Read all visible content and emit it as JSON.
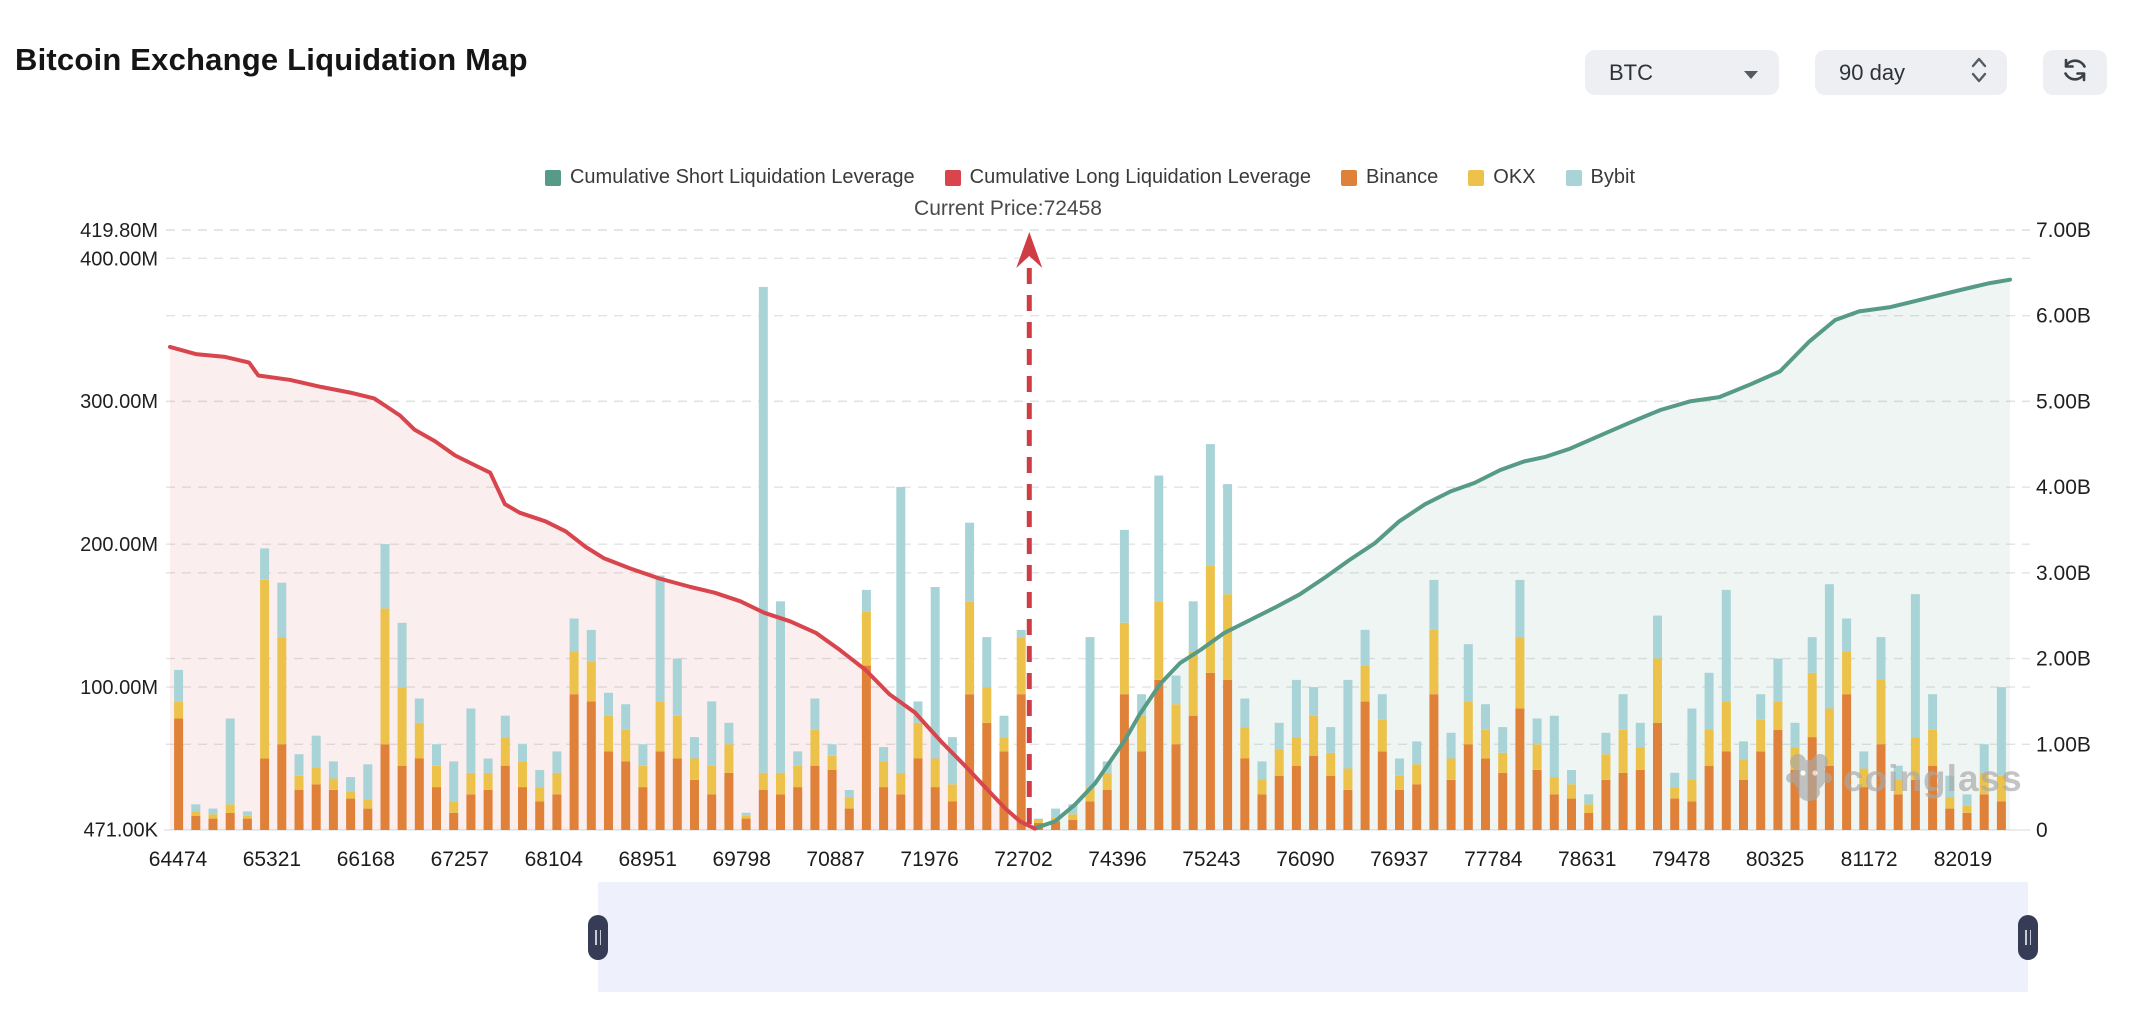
{
  "header": {
    "title": "Bitcoin Exchange Liquidation Map",
    "coin_select": {
      "value": "BTC"
    },
    "period_select": {
      "value": "90 day"
    }
  },
  "annotation": {
    "current_price_label": "Current Price:72458"
  },
  "watermark": {
    "text": "coinglass"
  },
  "chart_data": {
    "type": "composite",
    "title": "Bitcoin Exchange Liquidation Map",
    "grid": true,
    "legend_position": "top-center",
    "left_axis": {
      "min_label": "471.00K",
      "max": 419.8,
      "unit": "M",
      "ticks": [
        {
          "value": 419.8,
          "label": "419.80M",
          "grid": true
        },
        {
          "value": 400,
          "label": "400.00M",
          "grid": true
        },
        {
          "value": 300,
          "label": "300.00M",
          "grid": true
        },
        {
          "value": 200,
          "label": "200.00M",
          "grid": true
        },
        {
          "value": 100,
          "label": "100.00M",
          "grid": true
        },
        {
          "value": 0.471,
          "label": "471.00K",
          "grid": false
        }
      ]
    },
    "right_axis": {
      "max": 7,
      "unit": "B",
      "ticks": [
        {
          "value": 7,
          "label": "7.00B",
          "grid": true
        },
        {
          "value": 6,
          "label": "6.00B",
          "grid": true
        },
        {
          "value": 5,
          "label": "5.00B",
          "grid": true
        },
        {
          "value": 4,
          "label": "4.00B",
          "grid": true
        },
        {
          "value": 3,
          "label": "3.00B",
          "grid": true
        },
        {
          "value": 2,
          "label": "2.00B",
          "grid": true
        },
        {
          "value": 1,
          "label": "1.00B",
          "grid": true
        },
        {
          "value": 0,
          "label": "0",
          "grid": false
        }
      ]
    },
    "x_axis": {
      "labels": [
        "64474",
        "65321",
        "66168",
        "67257",
        "68104",
        "68951",
        "69798",
        "70887",
        "71976",
        "72702",
        "74396",
        "75243",
        "76090",
        "76937",
        "77784",
        "78631",
        "79478",
        "80325",
        "81172",
        "82019"
      ]
    },
    "current_price": {
      "value": 72458,
      "x_fraction": 0.467
    },
    "series": [
      {
        "name": "Cumulative Short Liquidation Leverage",
        "type": "line",
        "axis": "right",
        "color": "#569a87",
        "fill": "rgba(86,154,135,0.10)",
        "points": [
          [
            0.47,
            0.02
          ],
          [
            0.481,
            0.1
          ],
          [
            0.492,
            0.3
          ],
          [
            0.503,
            0.55
          ],
          [
            0.511,
            0.8
          ],
          [
            0.519,
            1.05
          ],
          [
            0.527,
            1.35
          ],
          [
            0.538,
            1.7
          ],
          [
            0.549,
            1.95
          ],
          [
            0.56,
            2.1
          ],
          [
            0.573,
            2.3
          ],
          [
            0.587,
            2.45
          ],
          [
            0.601,
            2.6
          ],
          [
            0.614,
            2.75
          ],
          [
            0.628,
            2.95
          ],
          [
            0.641,
            3.15
          ],
          [
            0.655,
            3.35
          ],
          [
            0.668,
            3.6
          ],
          [
            0.682,
            3.8
          ],
          [
            0.696,
            3.95
          ],
          [
            0.709,
            4.05
          ],
          [
            0.723,
            4.2
          ],
          [
            0.736,
            4.3
          ],
          [
            0.747,
            4.35
          ],
          [
            0.761,
            4.45
          ],
          [
            0.777,
            4.6
          ],
          [
            0.793,
            4.75
          ],
          [
            0.81,
            4.9
          ],
          [
            0.826,
            5.0
          ],
          [
            0.842,
            5.05
          ],
          [
            0.859,
            5.2
          ],
          [
            0.875,
            5.35
          ],
          [
            0.891,
            5.7
          ],
          [
            0.905,
            5.95
          ],
          [
            0.918,
            6.05
          ],
          [
            0.935,
            6.1
          ],
          [
            0.954,
            6.2
          ],
          [
            0.973,
            6.3
          ],
          [
            0.989,
            6.38
          ],
          [
            1.0,
            6.42
          ]
        ]
      },
      {
        "name": "Cumulative Long Liquidation Leverage",
        "type": "line",
        "axis": "left",
        "color": "#d8454d",
        "fill": "rgba(216,69,77,0.09)",
        "points": [
          [
            0.0,
            338
          ],
          [
            0.014,
            333
          ],
          [
            0.03,
            331
          ],
          [
            0.043,
            327
          ],
          [
            0.048,
            318
          ],
          [
            0.065,
            315
          ],
          [
            0.082,
            310
          ],
          [
            0.098,
            306
          ],
          [
            0.111,
            302
          ],
          [
            0.125,
            290
          ],
          [
            0.133,
            280
          ],
          [
            0.144,
            272
          ],
          [
            0.155,
            262
          ],
          [
            0.166,
            255
          ],
          [
            0.174,
            250
          ],
          [
            0.182,
            228
          ],
          [
            0.19,
            222
          ],
          [
            0.204,
            216
          ],
          [
            0.215,
            209
          ],
          [
            0.226,
            198
          ],
          [
            0.236,
            190
          ],
          [
            0.25,
            183
          ],
          [
            0.266,
            176
          ],
          [
            0.283,
            170
          ],
          [
            0.296,
            166
          ],
          [
            0.31,
            160
          ],
          [
            0.323,
            152
          ],
          [
            0.337,
            146
          ],
          [
            0.351,
            138
          ],
          [
            0.364,
            126
          ],
          [
            0.378,
            112
          ],
          [
            0.391,
            95
          ],
          [
            0.405,
            82
          ],
          [
            0.419,
            62
          ],
          [
            0.432,
            45
          ],
          [
            0.443,
            30
          ],
          [
            0.454,
            15
          ],
          [
            0.462,
            6
          ],
          [
            0.47,
            1
          ]
        ]
      },
      {
        "name": "Binance",
        "type": "bar",
        "axis": "left",
        "color": "#e0813a"
      },
      {
        "name": "OKX",
        "type": "bar",
        "axis": "left",
        "color": "#ecc24a"
      },
      {
        "name": "Bybit",
        "type": "bar",
        "axis": "left",
        "color": "#a9d4d7"
      }
    ],
    "bars": {
      "stack_order": [
        "Binance",
        "OKX",
        "Bybit"
      ],
      "unit": "M",
      "values": [
        [
          78,
          12,
          22
        ],
        [
          10,
          3,
          5
        ],
        [
          8,
          3,
          4
        ],
        [
          12,
          6,
          60
        ],
        [
          8,
          2,
          3
        ],
        [
          50,
          125,
          22
        ],
        [
          60,
          75,
          38
        ],
        [
          28,
          10,
          15
        ],
        [
          32,
          12,
          22
        ],
        [
          28,
          8,
          12
        ],
        [
          22,
          5,
          10
        ],
        [
          15,
          6,
          25
        ],
        [
          60,
          95,
          45
        ],
        [
          45,
          55,
          45
        ],
        [
          50,
          25,
          17
        ],
        [
          30,
          15,
          15
        ],
        [
          12,
          8,
          28
        ],
        [
          25,
          15,
          45
        ],
        [
          28,
          12,
          10
        ],
        [
          45,
          20,
          15
        ],
        [
          30,
          18,
          12
        ],
        [
          20,
          10,
          12
        ],
        [
          25,
          15,
          15
        ],
        [
          95,
          30,
          23
        ],
        [
          90,
          28,
          22
        ],
        [
          55,
          25,
          16
        ],
        [
          48,
          22,
          18
        ],
        [
          30,
          15,
          15
        ],
        [
          55,
          35,
          88
        ],
        [
          50,
          30,
          40
        ],
        [
          35,
          15,
          15
        ],
        [
          25,
          20,
          45
        ],
        [
          40,
          20,
          15
        ],
        [
          8,
          2,
          2
        ],
        [
          28,
          12,
          340
        ],
        [
          25,
          15,
          120
        ],
        [
          30,
          15,
          10
        ],
        [
          45,
          25,
          22
        ],
        [
          42,
          10,
          8
        ],
        [
          15,
          8,
          5
        ],
        [
          115,
          38,
          15
        ],
        [
          30,
          18,
          10
        ],
        [
          25,
          15,
          200
        ],
        [
          50,
          25,
          15
        ],
        [
          30,
          20,
          120
        ],
        [
          20,
          12,
          33
        ],
        [
          95,
          65,
          55
        ],
        [
          75,
          25,
          35
        ],
        [
          55,
          10,
          15
        ],
        [
          95,
          40,
          5
        ],
        [
          5,
          2,
          1
        ],
        [
          6,
          3,
          6
        ],
        [
          7,
          4,
          7
        ],
        [
          20,
          10,
          105
        ],
        [
          28,
          12,
          8
        ],
        [
          95,
          50,
          65
        ],
        [
          55,
          25,
          15
        ],
        [
          105,
          55,
          88
        ],
        [
          60,
          28,
          20
        ],
        [
          80,
          45,
          35
        ],
        [
          110,
          75,
          85
        ],
        [
          105,
          60,
          77
        ],
        [
          50,
          22,
          20
        ],
        [
          25,
          10,
          13
        ],
        [
          38,
          18,
          19
        ],
        [
          45,
          20,
          40
        ],
        [
          52,
          28,
          20
        ],
        [
          38,
          16,
          18
        ],
        [
          28,
          15,
          62
        ],
        [
          90,
          25,
          25
        ],
        [
          55,
          22,
          18
        ],
        [
          28,
          10,
          12
        ],
        [
          32,
          14,
          16
        ],
        [
          95,
          45,
          35
        ],
        [
          35,
          15,
          18
        ],
        [
          60,
          30,
          40
        ],
        [
          50,
          20,
          18
        ],
        [
          40,
          14,
          18
        ],
        [
          85,
          50,
          40
        ],
        [
          42,
          18,
          18
        ],
        [
          25,
          12,
          43
        ],
        [
          22,
          10,
          10
        ],
        [
          12,
          6,
          7
        ],
        [
          35,
          18,
          15
        ],
        [
          40,
          30,
          25
        ],
        [
          42,
          16,
          17
        ],
        [
          75,
          45,
          30
        ],
        [
          22,
          8,
          10
        ],
        [
          20,
          15,
          50
        ],
        [
          45,
          25,
          40
        ],
        [
          55,
          35,
          78
        ],
        [
          35,
          14,
          13
        ],
        [
          55,
          22,
          18
        ],
        [
          70,
          20,
          30
        ],
        [
          42,
          16,
          17
        ],
        [
          65,
          45,
          25
        ],
        [
          45,
          40,
          87
        ],
        [
          95,
          30,
          23
        ],
        [
          30,
          13,
          12
        ],
        [
          60,
          45,
          30
        ],
        [
          25,
          10,
          10
        ],
        [
          35,
          30,
          100
        ],
        [
          45,
          25,
          25
        ],
        [
          15,
          8,
          15
        ],
        [
          12,
          5,
          8
        ],
        [
          25,
          15,
          20
        ],
        [
          20,
          18,
          62
        ]
      ]
    }
  }
}
